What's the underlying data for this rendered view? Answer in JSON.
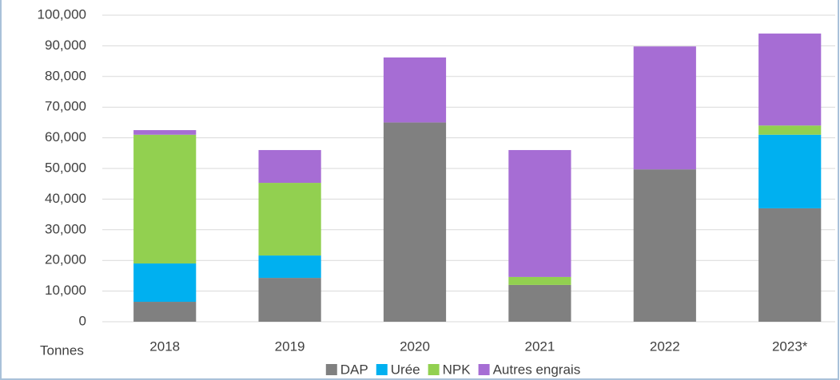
{
  "chart_data": {
    "type": "stacked_bar",
    "y_label": "Tonnes",
    "categories": [
      "2018",
      "2019",
      "2020",
      "2021",
      "2022",
      "2023*"
    ],
    "series": [
      {
        "name": "DAP",
        "color": "#808080",
        "values": [
          6500,
          14300,
          65000,
          12000,
          49700,
          37000
        ]
      },
      {
        "name": "Urée",
        "color": "#00b0f0",
        "values": [
          12500,
          7300,
          0,
          0,
          0,
          24000
        ]
      },
      {
        "name": "NPK",
        "color": "#92d050",
        "values": [
          42000,
          23700,
          0,
          2600,
          0,
          3000
        ]
      },
      {
        "name": "Autres engrais",
        "color": "#a66dd4",
        "values": [
          1500,
          10700,
          21200,
          41400,
          40100,
          30000
        ]
      }
    ],
    "ylim": [
      0,
      100000
    ],
    "yticks": [
      0,
      {
        "value": 10000,
        "label": "10,000"
      },
      {
        "value": 20000,
        "label": "20,000"
      },
      {
        "value": 30000,
        "label": "30,000"
      },
      {
        "value": 40000,
        "label": "40,000"
      },
      {
        "value": 50000,
        "label": "50,000"
      },
      {
        "value": 60000,
        "label": "60,000"
      },
      {
        "value": 70000,
        "label": "70,000"
      },
      {
        "value": 80000,
        "label": "80,000"
      },
      {
        "value": 90000,
        "label": "90,000"
      },
      {
        "value": 100000,
        "label": "100,000"
      }
    ],
    "grid": true,
    "legend": "bottom"
  }
}
